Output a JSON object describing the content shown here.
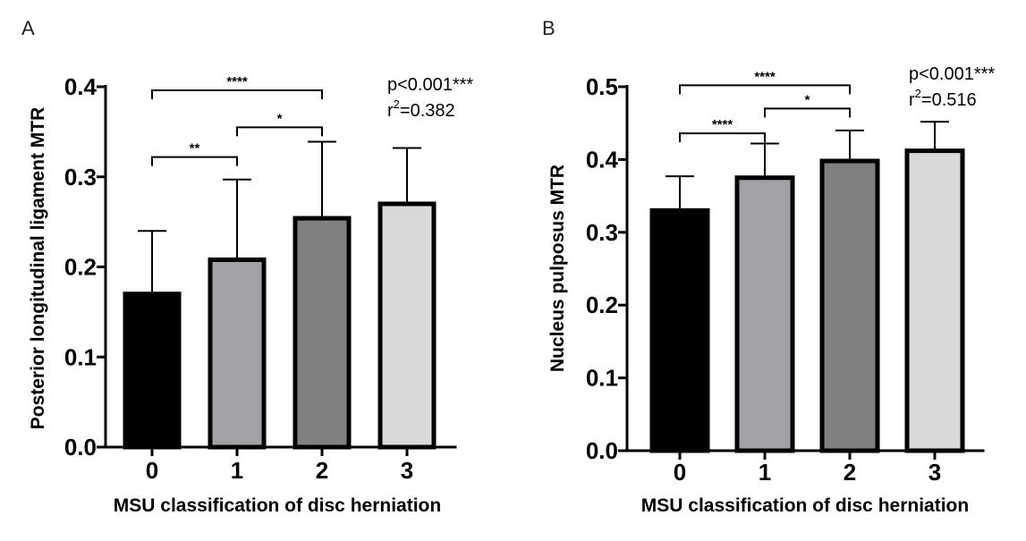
{
  "chart_data": [
    {
      "type": "bar",
      "panel": "A",
      "title": "",
      "xlabel": "MSU classification of disc herniation",
      "ylabel": "Posterior longitudinal ligament MTR",
      "ylim": [
        0,
        0.4
      ],
      "yticks": [
        "0.0",
        "0.1",
        "0.2",
        "0.3",
        "0.4"
      ],
      "categories": [
        "0",
        "1",
        "2",
        "3"
      ],
      "values": [
        0.17,
        0.208,
        0.254,
        0.27
      ],
      "errors": [
        0.07,
        0.089,
        0.085,
        0.062
      ],
      "colors": [
        "#000000",
        "#a3a3a7",
        "#808080",
        "#d9d9d9"
      ],
      "stats": {
        "p_text": "p<0.001***",
        "r2_prefix": "r",
        "r2_sup": "2",
        "r2_value": "=0.382"
      },
      "significance": [
        {
          "from": 0,
          "to": 2,
          "label": "****",
          "level": 0.396
        },
        {
          "from": 1,
          "to": 2,
          "label": "*",
          "level": 0.355
        },
        {
          "from": 0,
          "to": 1,
          "label": "**",
          "level": 0.322
        }
      ]
    },
    {
      "type": "bar",
      "panel": "B",
      "title": "",
      "xlabel": "MSU classification of disc herniation",
      "ylabel": "Nucleus pulposus MTR",
      "ylim": [
        0,
        0.5
      ],
      "yticks": [
        "0.0",
        "0.1",
        "0.2",
        "0.3",
        "0.4",
        "0.5"
      ],
      "categories": [
        "0",
        "1",
        "2",
        "3"
      ],
      "values": [
        0.33,
        0.375,
        0.398,
        0.412
      ],
      "errors": [
        0.047,
        0.047,
        0.042,
        0.04
      ],
      "colors": [
        "#000000",
        "#a3a3a7",
        "#808080",
        "#d9d9d9"
      ],
      "stats": {
        "p_text": "p<0.001***",
        "r2_prefix": "r",
        "r2_sup": "2",
        "r2_value": "=0.516"
      },
      "significance": [
        {
          "from": 0,
          "to": 2,
          "label": "****",
          "level": 0.502
        },
        {
          "from": 1,
          "to": 2,
          "label": "*",
          "level": 0.47
        },
        {
          "from": 0,
          "to": 1,
          "label": "****",
          "level": 0.436
        }
      ]
    }
  ]
}
